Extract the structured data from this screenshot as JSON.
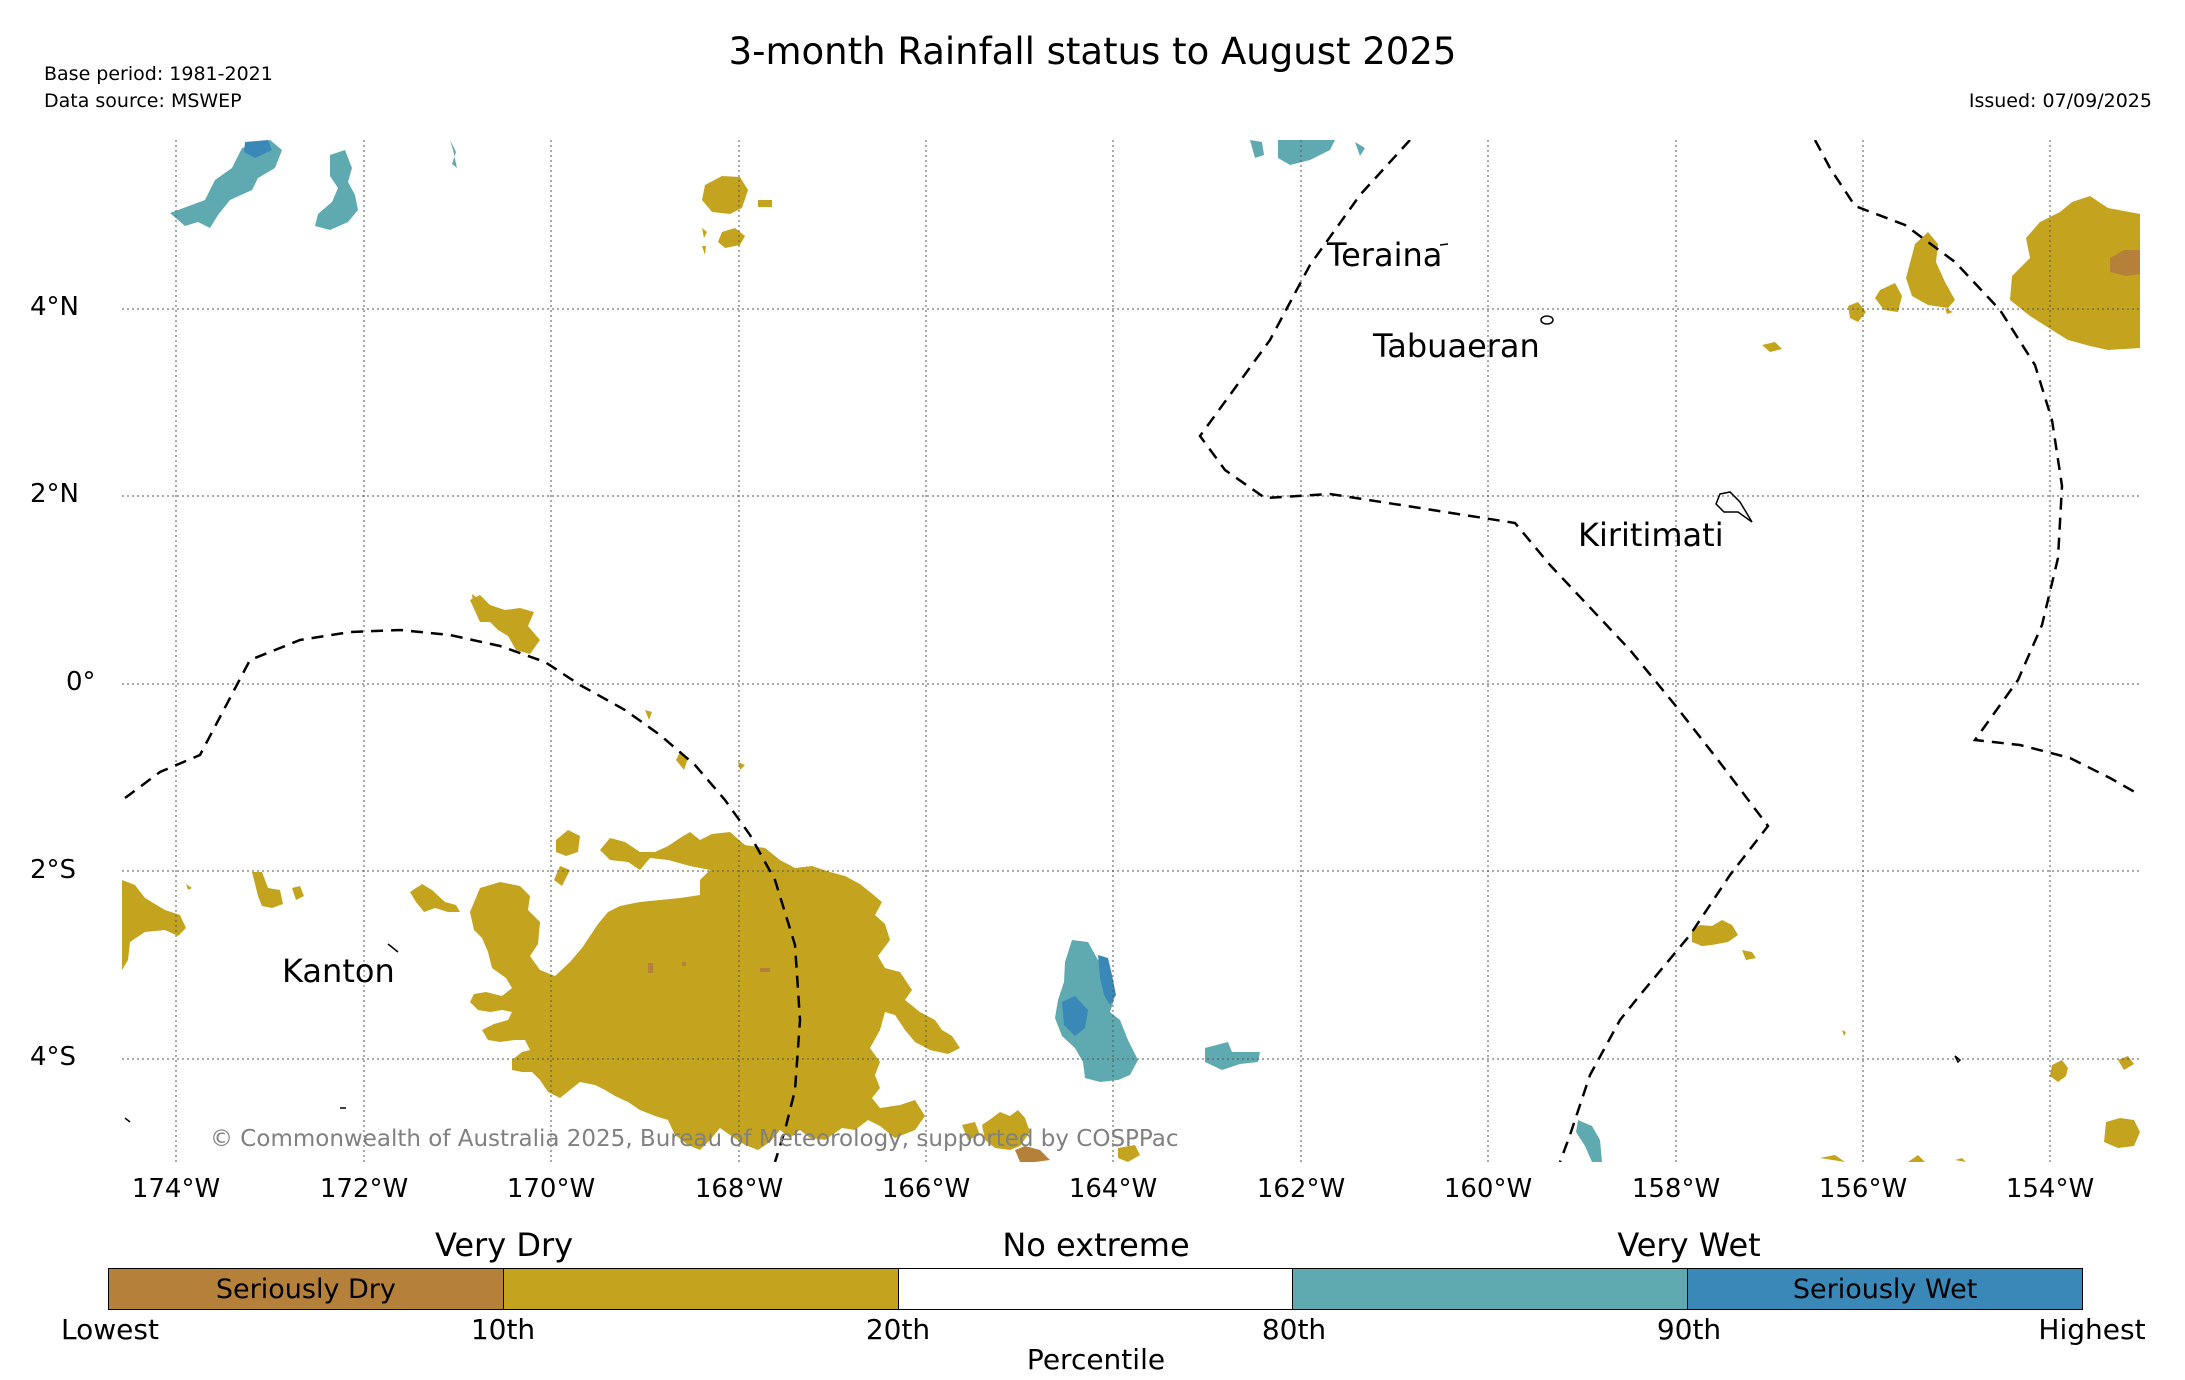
{
  "title": "3-month Rainfall status to August 2025",
  "meta": {
    "base_period": "Base period: 1981-2021",
    "data_source": "Data source: MSWEP",
    "issued": "Issued: 07/09/2025"
  },
  "axes": {
    "x_ticks": [
      "174°W",
      "172°W",
      "170°W",
      "168°W",
      "166°W",
      "164°W",
      "162°W",
      "160°W",
      "158°W",
      "156°W",
      "154°W"
    ],
    "y_ticks": [
      "4°N",
      "2°N",
      "0°",
      "2°S",
      "4°S"
    ]
  },
  "places": {
    "teraina": "Teraina",
    "tabuaeran": "Tabuaeran",
    "kiritimati": "Kiritimati",
    "kanton": "Kanton"
  },
  "copyright": "© Commonwealth of Australia 2025, Bureau of Meteorology, supported by COSPPac",
  "legend": {
    "categories": {
      "very_dry": "Very Dry",
      "no_extreme": "No extreme",
      "very_wet": "Very Wet"
    },
    "segments": [
      {
        "label": "Seriously Dry",
        "color": "#b5803a"
      },
      {
        "label": "",
        "color": "#c4a41e"
      },
      {
        "label": "",
        "color": "#ffffff"
      },
      {
        "label": "",
        "color": "#5eaab0"
      },
      {
        "label": "Seriously Wet",
        "color": "#3a88b8"
      }
    ],
    "percentiles": [
      "Lowest",
      "10th",
      "20th",
      "80th",
      "90th",
      "Highest"
    ],
    "axis_label": "Percentile"
  },
  "colors": {
    "seriously_dry": "#b5803a",
    "very_dry": "#c4a41e",
    "very_wet": "#5eaab0",
    "seriously_wet": "#3a88b8",
    "eez_line": "#000000",
    "grid": "#555555"
  }
}
